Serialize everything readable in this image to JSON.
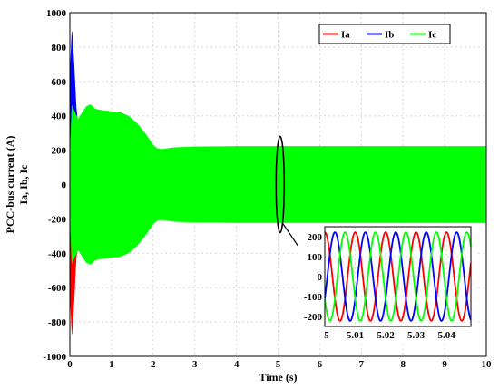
{
  "chart_data": [
    {
      "type": "line",
      "xlabel": "Time (s)",
      "ylabel": [
        "PCC-bus current (A)",
        "Ia, Ib, Ic"
      ],
      "xlim": [
        0,
        10
      ],
      "ylim": [
        -1000,
        1000
      ],
      "xticks": [
        "0",
        "1",
        "2",
        "3",
        "4",
        "5",
        "6",
        "7",
        "8",
        "9",
        "10"
      ],
      "yticks": [
        "1000",
        "800",
        "600",
        "400",
        "200",
        "0",
        "-200",
        "-400",
        "-600",
        "-800",
        "-1000"
      ],
      "grid": true,
      "legend": {
        "position": "top-right"
      },
      "series": [
        {
          "name": "Ia",
          "color": "#ff0000"
        },
        {
          "name": "Ib",
          "color": "#0000ff"
        },
        {
          "name": "Ic",
          "color": "#00ff00"
        }
      ],
      "annotation": {
        "x": 5.05,
        "y_range": [
          -280,
          280
        ],
        "note": "zoom region"
      },
      "envelope": {
        "t": [
          0,
          0.05,
          0.1,
          0.2,
          0.3,
          0.4,
          0.5,
          0.6,
          0.8,
          1.0,
          1.2,
          1.4,
          1.6,
          1.8,
          2.0,
          2.1,
          2.2,
          2.5,
          3.0,
          4.0,
          5.0,
          6.0,
          7.0,
          8.0,
          9.0,
          10.0
        ],
        "upper_Ic": [
          150,
          460,
          430,
          380,
          420,
          455,
          465,
          440,
          430,
          425,
          420,
          400,
          360,
          300,
          230,
          210,
          205,
          215,
          220,
          222,
          222,
          222,
          222,
          222,
          222,
          222
        ],
        "lower_Ic": [
          -150,
          -460,
          -430,
          -380,
          -420,
          -455,
          -465,
          -440,
          -430,
          -425,
          -420,
          -400,
          -360,
          -300,
          -230,
          -210,
          -205,
          -215,
          -220,
          -222,
          -222,
          -222,
          -222,
          -222,
          -222,
          -222
        ],
        "Ib_peak": {
          "t": [
            0,
            0.05,
            0.1,
            0.15,
            0.2,
            0.3
          ],
          "y": [
            600,
            890,
            700,
            450,
            340,
            380
          ]
        },
        "Ia_trough": {
          "t": [
            0,
            0.05,
            0.1,
            0.15,
            0.2,
            0.3
          ],
          "y": [
            -600,
            -870,
            -680,
            -430,
            -330,
            -380
          ]
        }
      }
    },
    {
      "type": "line",
      "inset": true,
      "xlim": [
        5,
        5.048
      ],
      "ylim": [
        -250,
        250
      ],
      "xticks": [
        "5",
        "5.01",
        "5.02",
        "5.03",
        "5.04"
      ],
      "yticks": [
        "200",
        "100",
        "0",
        "-100",
        "-200"
      ],
      "series": [
        {
          "name": "Ia",
          "amplitude": 222,
          "frequency_hz": 100,
          "phase_deg": 90,
          "color": "#ff0000"
        },
        {
          "name": "Ib",
          "amplitude": 222,
          "frequency_hz": 100,
          "phase_deg": -30,
          "color": "#0000ff"
        },
        {
          "name": "Ic",
          "amplitude": 222,
          "frequency_hz": 100,
          "phase_deg": 210,
          "color": "#00ff00"
        }
      ]
    }
  ]
}
